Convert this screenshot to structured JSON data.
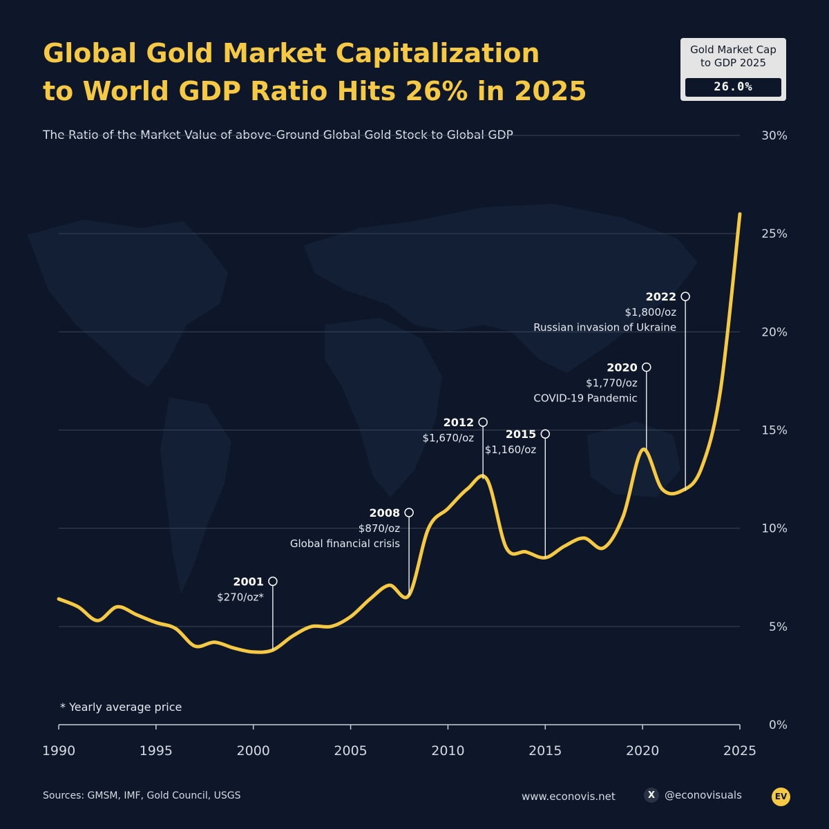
{
  "header": {
    "title_line1": "Global Gold Market Capitalization",
    "title_line2": "to World GDP Ratio Hits 26% in 2025"
  },
  "kpi": {
    "label_line1": "Gold Market Cap",
    "label_line2": "to GDP 2025",
    "value": "26.0%"
  },
  "footnote": "* Yearly average price",
  "footer": {
    "sources": "Sources: GMSM, IMF, Gold Council, USGS",
    "website": "www.econovis.net",
    "handle": "@econovisuals",
    "logo_text": "EV",
    "x_icon": "X"
  },
  "colors": {
    "background": "#0d1729",
    "accent": "#f6c944",
    "grid": "#3b4558",
    "text": "#e6e9ef"
  },
  "chart_data": {
    "type": "line",
    "title": "Global Gold Market Capitalization to World GDP Ratio Hits 26% in 2025",
    "subtitle": "The Ratio of the Market Value of above-Ground Global Gold Stock to Global GDP",
    "xlabel": "",
    "ylabel": "",
    "xlim": [
      1990,
      2025
    ],
    "ylim": [
      0,
      30
    ],
    "x_ticks": [
      1990,
      1995,
      2000,
      2005,
      2010,
      2015,
      2020,
      2025
    ],
    "x_tick_labels": [
      "1990",
      "1995",
      "2000",
      "2005",
      "2010",
      "2015",
      "2020",
      "2025"
    ],
    "y_ticks": [
      0,
      5,
      10,
      15,
      20,
      25,
      30
    ],
    "y_tick_labels": [
      "0%",
      "5%",
      "10%",
      "15%",
      "20%",
      "25%",
      "30%"
    ],
    "grid": true,
    "series": [
      {
        "name": "Gold market cap to world GDP",
        "x": [
          1990,
          1991,
          1992,
          1993,
          1994,
          1995,
          1996,
          1997,
          1998,
          1999,
          2000,
          2001,
          2002,
          2003,
          2004,
          2005,
          2006,
          2007,
          2008,
          2009,
          2010,
          2011,
          2012,
          2013,
          2014,
          2015,
          2016,
          2017,
          2018,
          2019,
          2020,
          2021,
          2022,
          2023,
          2024,
          2025
        ],
        "values": [
          6.4,
          6.0,
          5.3,
          6.0,
          5.6,
          5.2,
          4.9,
          4.0,
          4.2,
          3.9,
          3.7,
          3.8,
          4.5,
          5.0,
          5.0,
          5.5,
          6.4,
          7.1,
          6.6,
          10.0,
          11.0,
          12.0,
          12.5,
          9.0,
          8.8,
          8.5,
          9.1,
          9.5,
          9.0,
          10.6,
          14.0,
          12.0,
          11.9,
          13.0,
          17.0,
          26.0
        ]
      }
    ],
    "annotations": [
      {
        "year": "2001",
        "price": "$270/oz*",
        "event": "",
        "x": 2001.0,
        "y": 3.8,
        "label_y": 7.3,
        "anchor": "right"
      },
      {
        "year": "2008",
        "price": "$870/oz",
        "event": "Global financial crisis",
        "x": 2008.0,
        "y": 6.6,
        "label_y": 10.8,
        "anchor": "right"
      },
      {
        "year": "2012",
        "price": "$1,670/oz",
        "event": "",
        "x": 2011.8,
        "y": 12.5,
        "label_y": 15.4,
        "anchor": "right"
      },
      {
        "year": "2015",
        "price": "$1,160/oz",
        "event": "",
        "x": 2015.0,
        "y": 8.5,
        "label_y": 14.8,
        "anchor": "right"
      },
      {
        "year": "2020",
        "price": "$1,770/oz",
        "event": "COVID-19 Pandemic",
        "x": 2020.2,
        "y": 14.0,
        "label_y": 18.2,
        "anchor": "right"
      },
      {
        "year": "2022",
        "price": "$1,800/oz",
        "event": "Russian invasion of Ukraine",
        "x": 2022.2,
        "y": 11.9,
        "label_y": 21.8,
        "anchor": "right"
      }
    ]
  }
}
